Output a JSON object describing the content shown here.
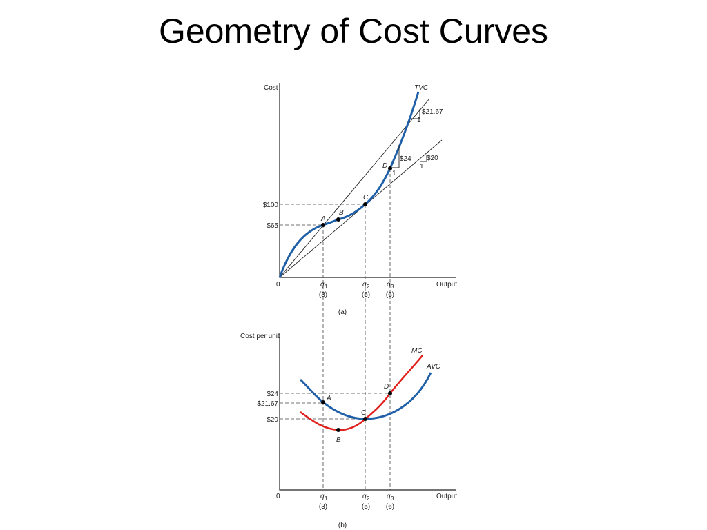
{
  "title": "Geometry of Cost Curves",
  "panel_a": {
    "y_label": "Cost",
    "x_label": "Output",
    "origin": "0",
    "curve_label": "TVC",
    "points": [
      "A",
      "B",
      "C",
      "D"
    ],
    "y_ticks": [
      "$100",
      "$65"
    ],
    "x_ticks": [
      {
        "q": "q",
        "sub": "1",
        "n": "(3)"
      },
      {
        "q": "q",
        "sub": "2",
        "n": "(5)"
      },
      {
        "q": "q",
        "sub": "3",
        "n": "(6)"
      }
    ],
    "slopes": [
      {
        "rise": "$21.67",
        "run": "1"
      },
      {
        "rise": "$24",
        "run": "1"
      },
      {
        "rise": "$20",
        "run": "1"
      }
    ],
    "caption": "(a)"
  },
  "panel_b": {
    "y_label": "Cost per unit",
    "x_label": "Output",
    "origin": "0",
    "curve_labels": [
      "MC",
      "AVC"
    ],
    "points": [
      "A",
      "B",
      "C",
      "D"
    ],
    "y_ticks": [
      "$24",
      "$21.67",
      "$20"
    ],
    "x_ticks": [
      {
        "q": "q",
        "sub": "1",
        "n": "(3)"
      },
      {
        "q": "q",
        "sub": "2",
        "n": "(5)"
      },
      {
        "q": "q",
        "sub": "3",
        "n": "(6)"
      }
    ],
    "caption": "(b)"
  }
}
